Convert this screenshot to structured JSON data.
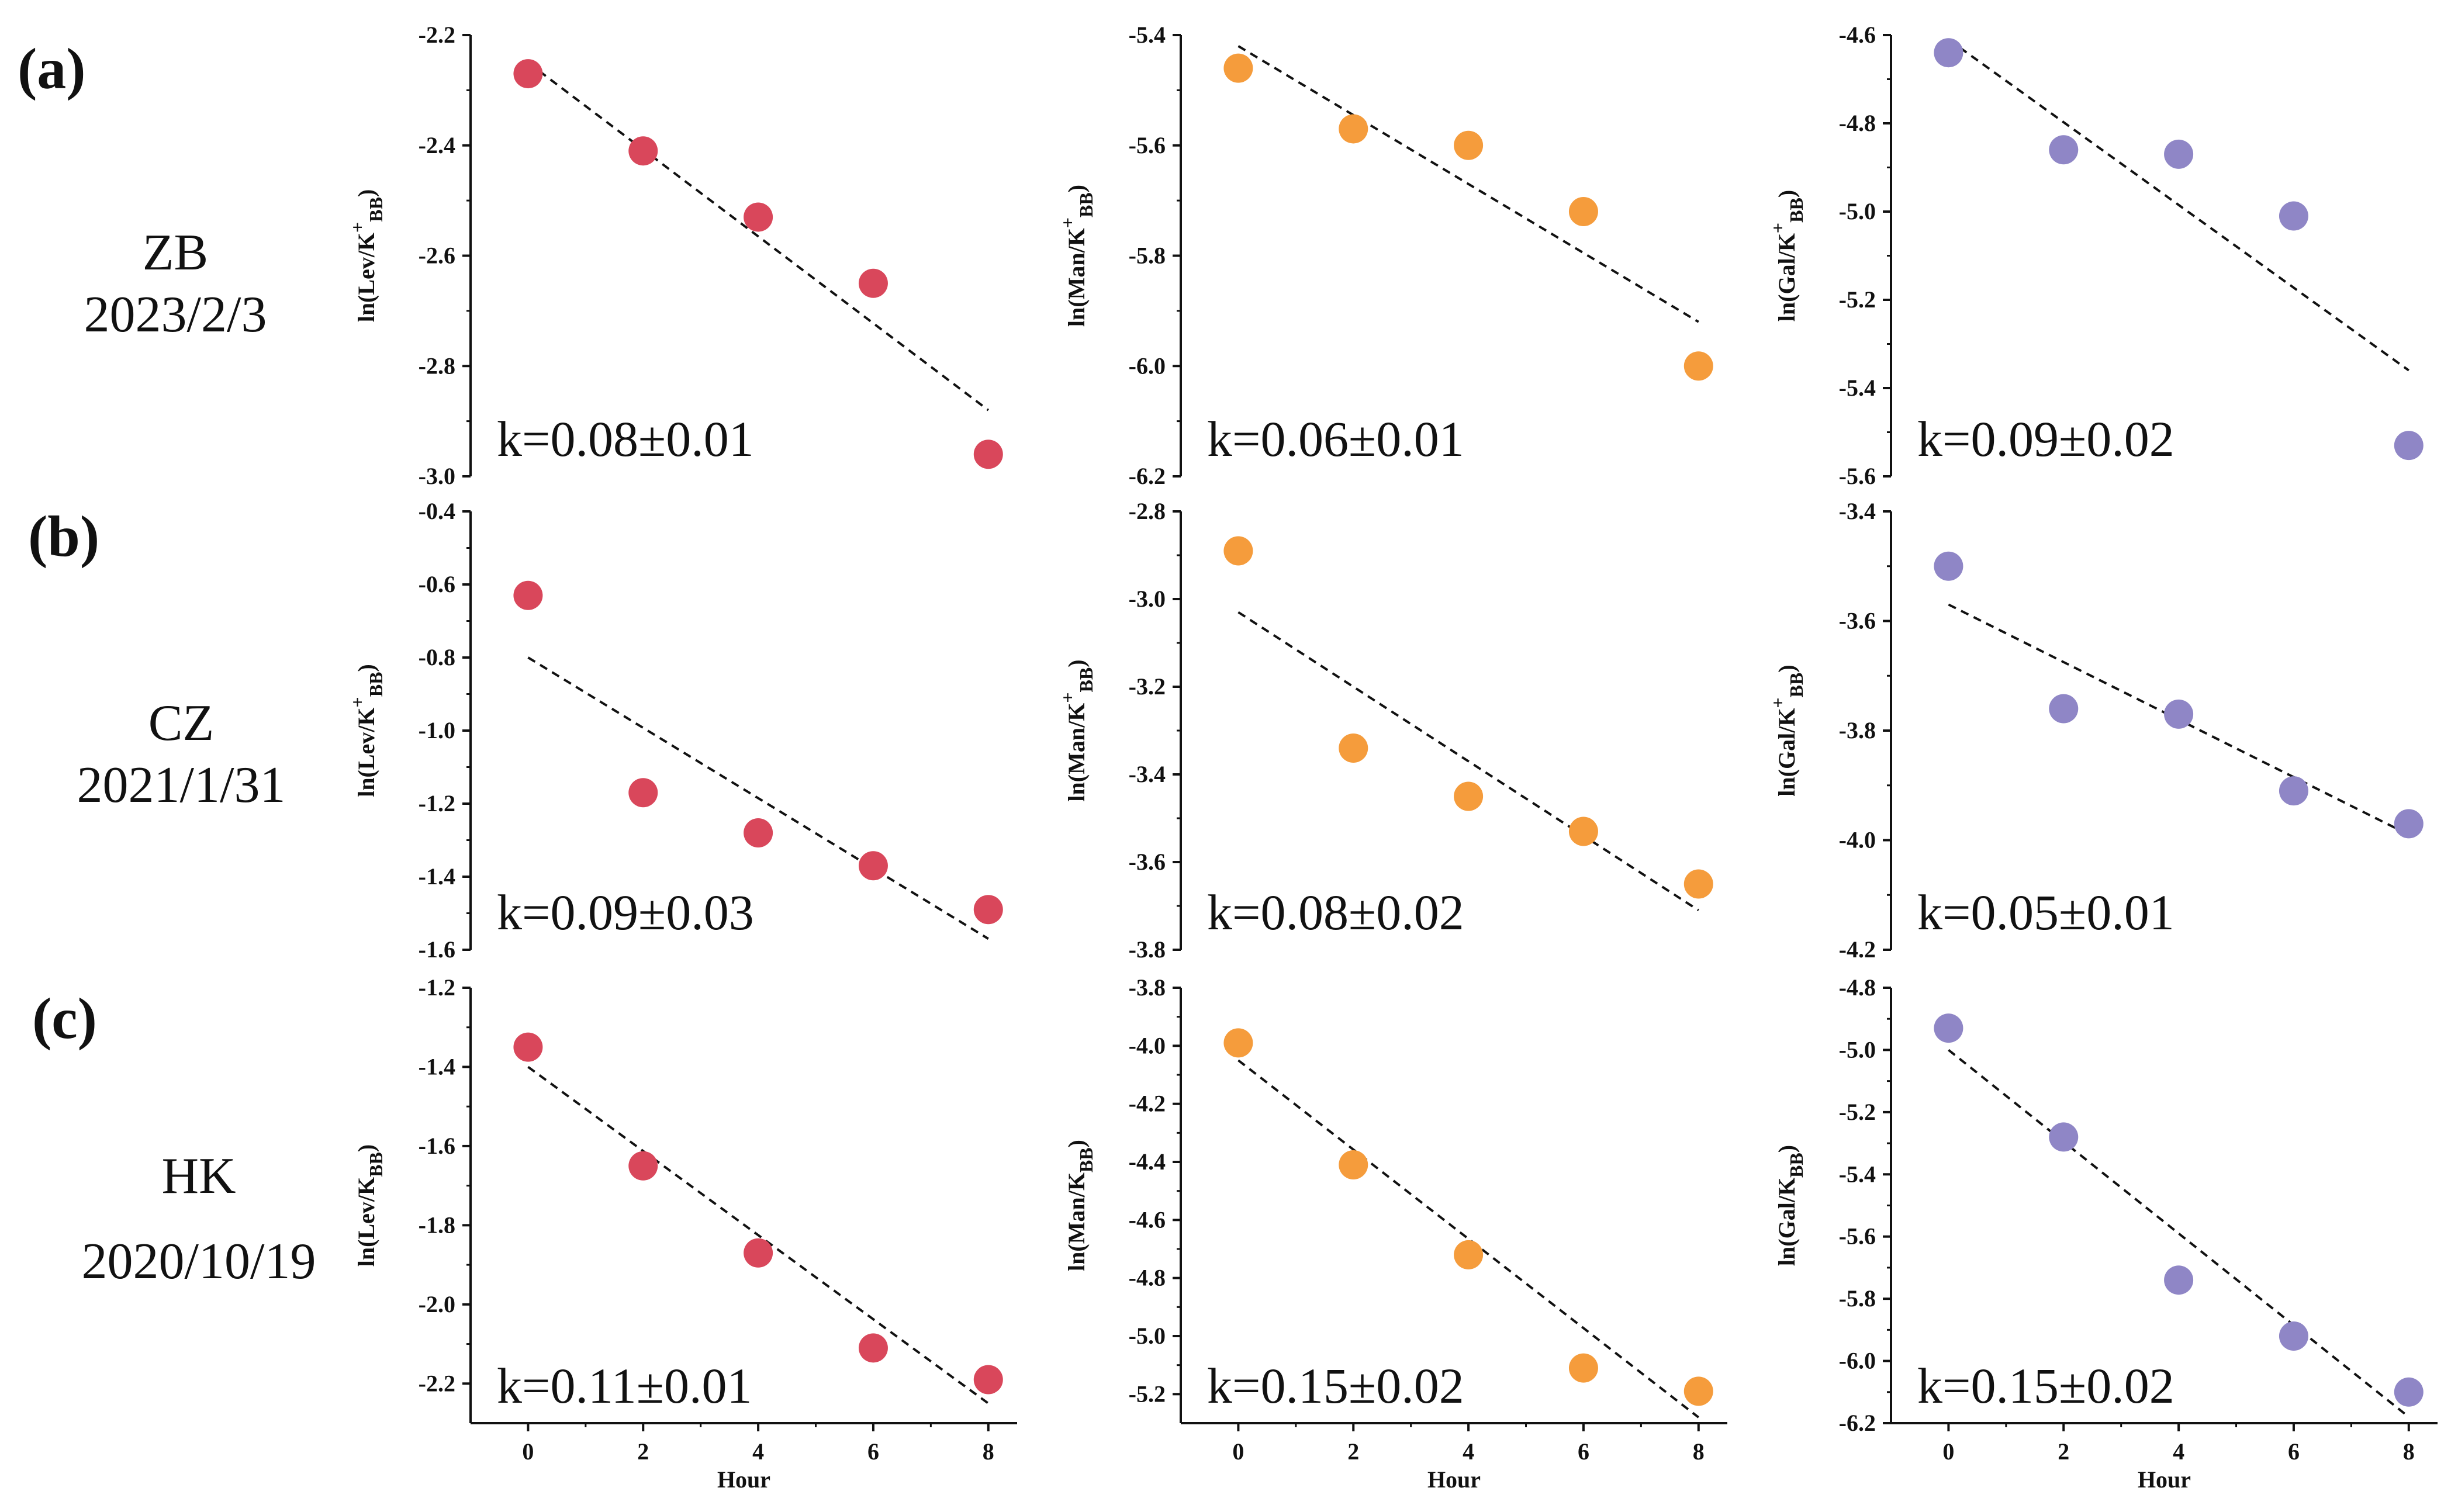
{
  "rows": [
    {
      "label": "(a)",
      "site": "ZB",
      "date": "2023/2/3"
    },
    {
      "label": "(b)",
      "site": "CZ",
      "date": "2021/1/31"
    },
    {
      "label": "(c)",
      "site": "HK",
      "date": "2020/10/19"
    }
  ],
  "colors": {
    "Lev": "#d9475b",
    "Man": "#f59c3c",
    "Gal": "#8f86c6",
    "axis": "#111111",
    "fit": "#111111"
  },
  "xlabel": "Hour",
  "chart_data": [
    {
      "type": "scatter",
      "row": 0,
      "col": 0,
      "ylabel": "ln(Lev/K+BB)",
      "ylabel_main": "ln(Lev/K",
      "ylabel_sup": "+",
      "ylabel_sub": "BB",
      "ylabel_close": ")",
      "species": "Lev",
      "x": [
        0,
        2,
        4,
        6,
        8
      ],
      "y": [
        -2.27,
        -2.41,
        -2.53,
        -2.65,
        -2.96
      ],
      "fit": {
        "x": [
          0,
          8
        ],
        "y": [
          -2.25,
          -2.88
        ]
      },
      "annotation": "k=0.08±0.01",
      "ylim": [
        -3.0,
        -2.2
      ],
      "yticks": [
        -3.0,
        -2.8,
        -2.6,
        -2.4,
        -2.2
      ],
      "xticks": [
        0,
        2,
        4,
        6,
        8
      ],
      "xlim": [
        -1,
        8.5
      ]
    },
    {
      "type": "scatter",
      "row": 0,
      "col": 1,
      "ylabel": "ln(Man/K+BB)",
      "ylabel_main": "ln(Man/K",
      "ylabel_sup": "+",
      "ylabel_sub": "BB",
      "ylabel_close": ")",
      "species": "Man",
      "x": [
        0,
        2,
        4,
        6,
        8
      ],
      "y": [
        -5.46,
        -5.57,
        -5.6,
        -5.72,
        -6.0
      ],
      "fit": {
        "x": [
          0,
          8
        ],
        "y": [
          -5.42,
          -5.92
        ]
      },
      "annotation": "k=0.06±0.01",
      "ylim": [
        -6.2,
        -5.4
      ],
      "yticks": [
        -6.2,
        -6.0,
        -5.8,
        -5.6,
        -5.4
      ],
      "xticks": [
        0,
        2,
        4,
        6,
        8
      ],
      "xlim": [
        -1,
        8.5
      ]
    },
    {
      "type": "scatter",
      "row": 0,
      "col": 2,
      "ylabel": "ln(Gal/K+BB)",
      "ylabel_main": "ln(Gal/K",
      "ylabel_sup": "+",
      "ylabel_sub": "BB",
      "ylabel_close": ")",
      "species": "Gal",
      "x": [
        0,
        2,
        4,
        6,
        8
      ],
      "y": [
        -4.64,
        -4.86,
        -4.87,
        -5.01,
        -5.53
      ],
      "fit": {
        "x": [
          0,
          8
        ],
        "y": [
          -4.61,
          -5.36
        ]
      },
      "annotation": "k=0.09±0.02",
      "ylim": [
        -5.6,
        -4.6
      ],
      "yticks": [
        -5.6,
        -5.4,
        -5.2,
        -5.0,
        -4.8,
        -4.6
      ],
      "xticks": [
        0,
        2,
        4,
        6,
        8
      ],
      "xlim": [
        -1,
        8.5
      ]
    },
    {
      "type": "scatter",
      "row": 1,
      "col": 0,
      "ylabel": "ln(Lev/K+BB)",
      "ylabel_main": "ln(Lev/K",
      "ylabel_sup": "+",
      "ylabel_sub": "BB",
      "ylabel_close": ")",
      "species": "Lev",
      "x": [
        0,
        2,
        4,
        6,
        8
      ],
      "y": [
        -0.63,
        -1.17,
        -1.28,
        -1.37,
        -1.49
      ],
      "fit": {
        "x": [
          0,
          8
        ],
        "y": [
          -0.8,
          -1.57
        ]
      },
      "annotation": "k=0.09±0.03",
      "ylim": [
        -1.6,
        -0.4
      ],
      "yticks": [
        -1.6,
        -1.4,
        -1.2,
        -1.0,
        -0.8,
        -0.6,
        -0.4
      ],
      "xticks": [
        0,
        2,
        4,
        6,
        8
      ],
      "xlim": [
        -1,
        8.5
      ]
    },
    {
      "type": "scatter",
      "row": 1,
      "col": 1,
      "ylabel": "ln(Man/K+BB)",
      "ylabel_main": "ln(Man/K",
      "ylabel_sup": "+",
      "ylabel_sub": "BB",
      "ylabel_close": ")",
      "species": "Man",
      "x": [
        0,
        2,
        4,
        6,
        8
      ],
      "y": [
        -2.89,
        -3.34,
        -3.45,
        -3.53,
        -3.65
      ],
      "fit": {
        "x": [
          0,
          8
        ],
        "y": [
          -3.03,
          -3.71
        ]
      },
      "annotation": "k=0.08±0.02",
      "ylim": [
        -3.8,
        -2.8
      ],
      "yticks": [
        -3.8,
        -3.6,
        -3.4,
        -3.2,
        -3.0,
        -2.8
      ],
      "xticks": [
        0,
        2,
        4,
        6,
        8
      ],
      "xlim": [
        -1,
        8.5
      ]
    },
    {
      "type": "scatter",
      "row": 1,
      "col": 2,
      "ylabel": "ln(Gal/K+BB)",
      "ylabel_main": "ln(Gal/K",
      "ylabel_sup": "+",
      "ylabel_sub": "BB",
      "ylabel_close": ")",
      "species": "Gal",
      "x": [
        0,
        2,
        4,
        6,
        8
      ],
      "y": [
        -3.5,
        -3.76,
        -3.77,
        -3.91,
        -3.97
      ],
      "fit": {
        "x": [
          0,
          8
        ],
        "y": [
          -3.57,
          -3.99
        ]
      },
      "annotation": "k=0.05±0.01",
      "ylim": [
        -4.2,
        -3.4
      ],
      "yticks": [
        -4.2,
        -4.0,
        -3.8,
        -3.6,
        -3.4
      ],
      "xticks": [
        0,
        2,
        4,
        6,
        8
      ],
      "xlim": [
        -1,
        8.5
      ]
    },
    {
      "type": "scatter",
      "row": 2,
      "col": 0,
      "ylabel": "ln(Lev/KBB)",
      "ylabel_main": "ln(Lev/K",
      "ylabel_sup": "",
      "ylabel_sub": "BB",
      "ylabel_close": ")",
      "species": "Lev",
      "x": [
        0,
        2,
        4,
        6,
        8
      ],
      "y": [
        -1.35,
        -1.65,
        -1.87,
        -2.11,
        -2.19
      ],
      "fit": {
        "x": [
          0,
          8
        ],
        "y": [
          -1.4,
          -2.25
        ]
      },
      "annotation": "k=0.11±0.01",
      "ylim": [
        -2.3,
        -1.2
      ],
      "yticks": [
        -2.2,
        -2.0,
        -1.8,
        -1.6,
        -1.4,
        -1.2
      ],
      "xticks": [
        0,
        2,
        4,
        6,
        8
      ],
      "xlim": [
        -1,
        8.5
      ]
    },
    {
      "type": "scatter",
      "row": 2,
      "col": 1,
      "ylabel": "ln(Man/KBB)",
      "ylabel_main": "ln(Man/K",
      "ylabel_sup": "",
      "ylabel_sub": "BB",
      "ylabel_close": ")",
      "species": "Man",
      "x": [
        0,
        2,
        4,
        6,
        8
      ],
      "y": [
        -3.99,
        -4.41,
        -4.72,
        -5.11,
        -5.19
      ],
      "fit": {
        "x": [
          0,
          8
        ],
        "y": [
          -4.05,
          -5.28
        ]
      },
      "annotation": "k=0.15±0.02",
      "ylim": [
        -5.3,
        -3.8
      ],
      "yticks": [
        -5.2,
        -5.0,
        -4.8,
        -4.6,
        -4.4,
        -4.2,
        -4.0,
        -3.8
      ],
      "xticks": [
        0,
        2,
        4,
        6,
        8
      ],
      "xlim": [
        -1,
        8.5
      ]
    },
    {
      "type": "scatter",
      "row": 2,
      "col": 2,
      "ylabel": "ln(Gal/KBB)",
      "ylabel_main": "ln(Gal/K",
      "ylabel_sup": "",
      "ylabel_sub": "BB",
      "ylabel_close": ")",
      "species": "Gal",
      "x": [
        0,
        2,
        4,
        6,
        8
      ],
      "y": [
        -4.93,
        -5.28,
        -5.74,
        -5.92,
        -6.1
      ],
      "fit": {
        "x": [
          0,
          8
        ],
        "y": [
          -5.0,
          -6.18
        ]
      },
      "annotation": "k=0.15±0.02",
      "ylim": [
        -6.2,
        -4.8
      ],
      "yticks": [
        -6.2,
        -6.0,
        -5.8,
        -5.6,
        -5.4,
        -5.2,
        -5.0,
        -4.8
      ],
      "xticks": [
        0,
        2,
        4,
        6,
        8
      ],
      "xlim": [
        -1,
        8.5
      ]
    }
  ]
}
